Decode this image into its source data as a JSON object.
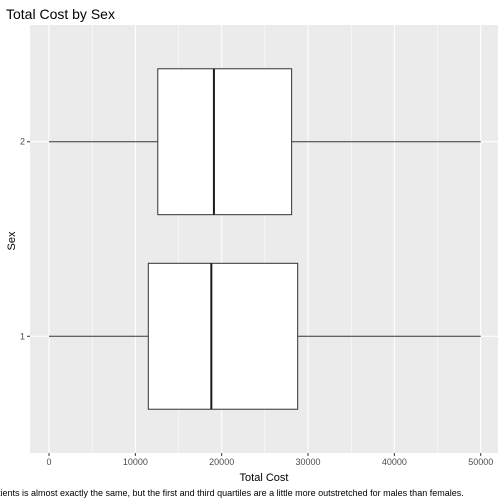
{
  "chart_data": {
    "type": "boxplot",
    "orientation": "horizontal",
    "title": "Total Cost by Sex",
    "xlabel": "Total Cost",
    "ylabel": "Sex",
    "caption": "tients is almost exactly the same, but the first and third quartiles are a little more outstretched for males than females.",
    "xlim": [
      -2200,
      52000
    ],
    "x_ticks": [
      0,
      10000,
      20000,
      30000,
      40000,
      50000
    ],
    "x_tick_labels": [
      "0",
      "10000",
      "20000",
      "30000",
      "40000",
      "50000"
    ],
    "categories": [
      "1",
      "2"
    ],
    "boxes": [
      {
        "category": "1",
        "min": 0,
        "q1": 11500,
        "median": 18800,
        "q3": 28800,
        "max": 50000
      },
      {
        "category": "2",
        "min": 0,
        "q1": 12600,
        "median": 19100,
        "q3": 28100,
        "max": 50000
      }
    ],
    "grid": true,
    "colors": {
      "panel_background": "#ebebeb",
      "grid_major": "#ffffff",
      "box_fill": "#ffffff",
      "box_stroke": "#333333",
      "median_stroke": "#1a1a1a"
    }
  }
}
